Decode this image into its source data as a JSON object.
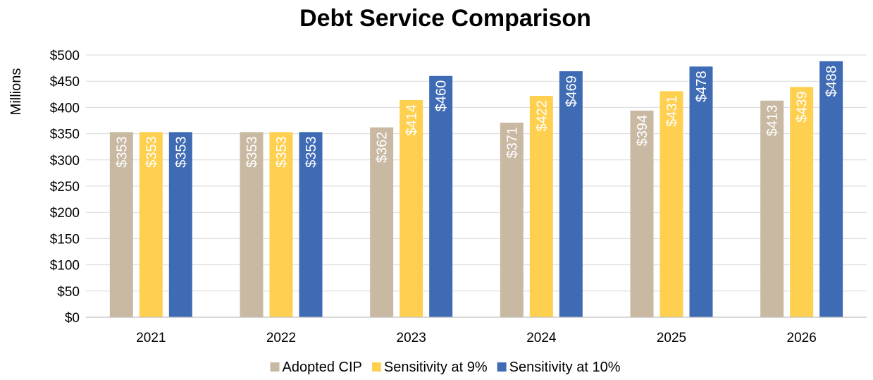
{
  "chart_data": {
    "type": "bar",
    "title": "Debt Service Comparison",
    "xlabel": "",
    "ylabel": "Millions",
    "ylim": [
      0,
      500
    ],
    "ytick_step": 50,
    "ytick_prefix": "$",
    "categories": [
      "2021",
      "2022",
      "2023",
      "2024",
      "2025",
      "2026"
    ],
    "series": [
      {
        "name": "Adopted CIP",
        "color": "#c9b9a3",
        "values": [
          353,
          353,
          362,
          371,
          394,
          413
        ]
      },
      {
        "name": "Sensitivity at 9%",
        "color": "#ffd04f",
        "values": [
          353,
          353,
          414,
          422,
          431,
          439
        ]
      },
      {
        "name": "Sensitivity at 10%",
        "color": "#3f6bb5",
        "values": [
          353,
          353,
          460,
          469,
          478,
          488
        ]
      }
    ],
    "data_labels": {
      "prefix": "$",
      "orientation": "vertical",
      "color": "#ffffff"
    },
    "grid": true,
    "legend": {
      "position": "bottom"
    }
  }
}
